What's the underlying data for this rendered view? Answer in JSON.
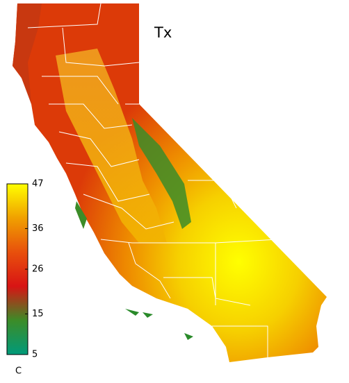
{
  "map": {
    "title": "Tx",
    "colorbar": {
      "label": "C",
      "lim": [
        5,
        47
      ],
      "ticks": [
        5,
        15,
        26,
        36,
        47
      ],
      "colors": [
        "#009a7a",
        "#3c8c28",
        "#d81414",
        "#e8500c",
        "#f0a000",
        "#ffff00"
      ]
    }
  }
}
